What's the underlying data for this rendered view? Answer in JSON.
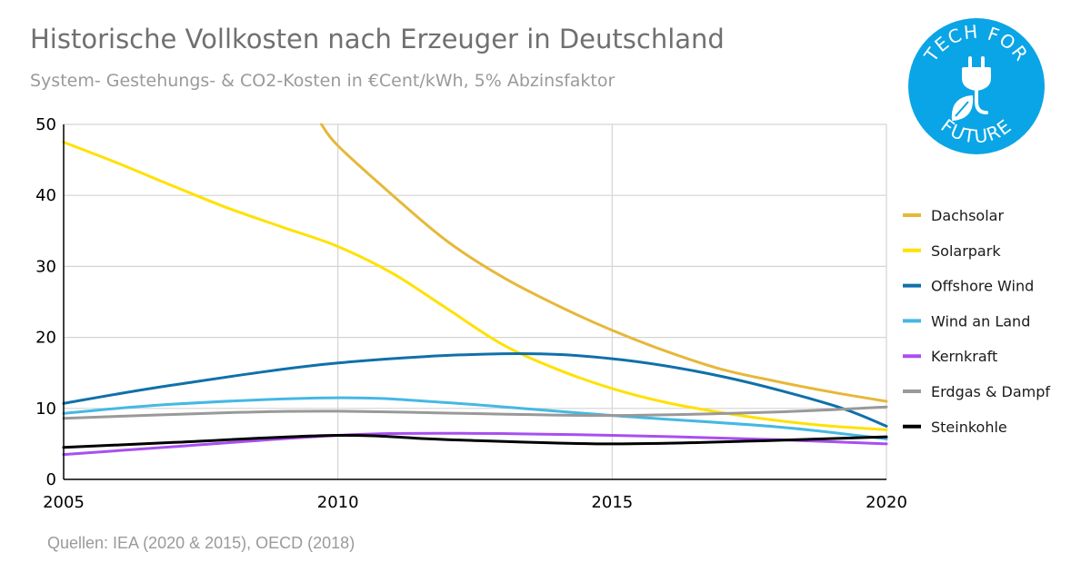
{
  "header": {
    "title": "Historische Vollkosten nach Erzeuger in Deutschland",
    "subtitle": "System- Gestehungs- & CO2-Kosten in €Cent/kWh, 5% Abzinsfaktor"
  },
  "footer": {
    "source": "Quellen: IEA (2020 & 2015), OECD (2018)"
  },
  "logo": {
    "top_text": "TECH FOR",
    "bottom_text": "FUTURE",
    "icon": "plug-leaf-icon",
    "color": "#0aa5e6"
  },
  "chart_data": {
    "type": "line",
    "title": "Historische Vollkosten nach Erzeuger in Deutschland",
    "subtitle": "System- Gestehungs- & CO2-Kosten in €Cent/kWh, 5% Abzinsfaktor",
    "xlabel": "",
    "ylabel": "",
    "xlim": [
      2005,
      2020
    ],
    "ylim": [
      0,
      50
    ],
    "x_ticks": [
      "2005",
      "2010",
      "2015",
      "2020"
    ],
    "y_ticks": [
      "0",
      "10",
      "20",
      "30",
      "40",
      "50"
    ],
    "grid": "vertical and horizontal",
    "legend_position": "right",
    "series": [
      {
        "name": "Dachsolar",
        "color": "#e6b83a",
        "points": [
          [
            2009.7,
            50
          ],
          [
            2010,
            47
          ],
          [
            2011,
            40
          ],
          [
            2012,
            33.5
          ],
          [
            2013,
            28.5
          ],
          [
            2014,
            24.5
          ],
          [
            2015,
            21
          ],
          [
            2016,
            18
          ],
          [
            2017,
            15.5
          ],
          [
            2018,
            13.8
          ],
          [
            2019,
            12.3
          ],
          [
            2020,
            11
          ]
        ]
      },
      {
        "name": "Solarpark",
        "color": "#ffe100",
        "points": [
          [
            2005,
            47.5
          ],
          [
            2006,
            44.5
          ],
          [
            2007,
            41.3
          ],
          [
            2008,
            38.2
          ],
          [
            2009,
            35.5
          ],
          [
            2010,
            32.8
          ],
          [
            2011,
            29
          ],
          [
            2012,
            24
          ],
          [
            2013,
            19
          ],
          [
            2014,
            15.5
          ],
          [
            2015,
            12.8
          ],
          [
            2016,
            10.8
          ],
          [
            2017,
            9.4
          ],
          [
            2018,
            8.3
          ],
          [
            2019,
            7.5
          ],
          [
            2020,
            7
          ]
        ]
      },
      {
        "name": "Offshore Wind",
        "color": "#1070aa",
        "points": [
          [
            2005,
            10.7
          ],
          [
            2007,
            13.3
          ],
          [
            2010,
            16.4
          ],
          [
            2013,
            17.7
          ],
          [
            2015,
            17
          ],
          [
            2017,
            14.5
          ],
          [
            2019,
            10.5
          ],
          [
            2020,
            7.5
          ]
        ]
      },
      {
        "name": "Wind an Land",
        "color": "#45b8e4",
        "points": [
          [
            2005,
            9.3
          ],
          [
            2007,
            10.6
          ],
          [
            2010,
            11.5
          ],
          [
            2012,
            10.8
          ],
          [
            2015,
            9
          ],
          [
            2018,
            7.4
          ],
          [
            2020,
            5.7
          ]
        ]
      },
      {
        "name": "Kernkraft",
        "color": "#a84ff0",
        "points": [
          [
            2005,
            3.5
          ],
          [
            2007,
            4.6
          ],
          [
            2010,
            6.2
          ],
          [
            2012,
            6.5
          ],
          [
            2015,
            6.2
          ],
          [
            2018,
            5.6
          ],
          [
            2020,
            5
          ]
        ]
      },
      {
        "name": "Erdgas & Dampf",
        "color": "#999999",
        "points": [
          [
            2005,
            8.6
          ],
          [
            2008,
            9.4
          ],
          [
            2010,
            9.6
          ],
          [
            2013,
            9.2
          ],
          [
            2015,
            9
          ],
          [
            2018,
            9.5
          ],
          [
            2020,
            10.2
          ]
        ]
      },
      {
        "name": "Steinkohle",
        "color": "#000000",
        "points": [
          [
            2005,
            4.5
          ],
          [
            2007,
            5.2
          ],
          [
            2010,
            6.2
          ],
          [
            2012,
            5.6
          ],
          [
            2015,
            5
          ],
          [
            2018,
            5.5
          ],
          [
            2020,
            6
          ]
        ]
      }
    ]
  }
}
